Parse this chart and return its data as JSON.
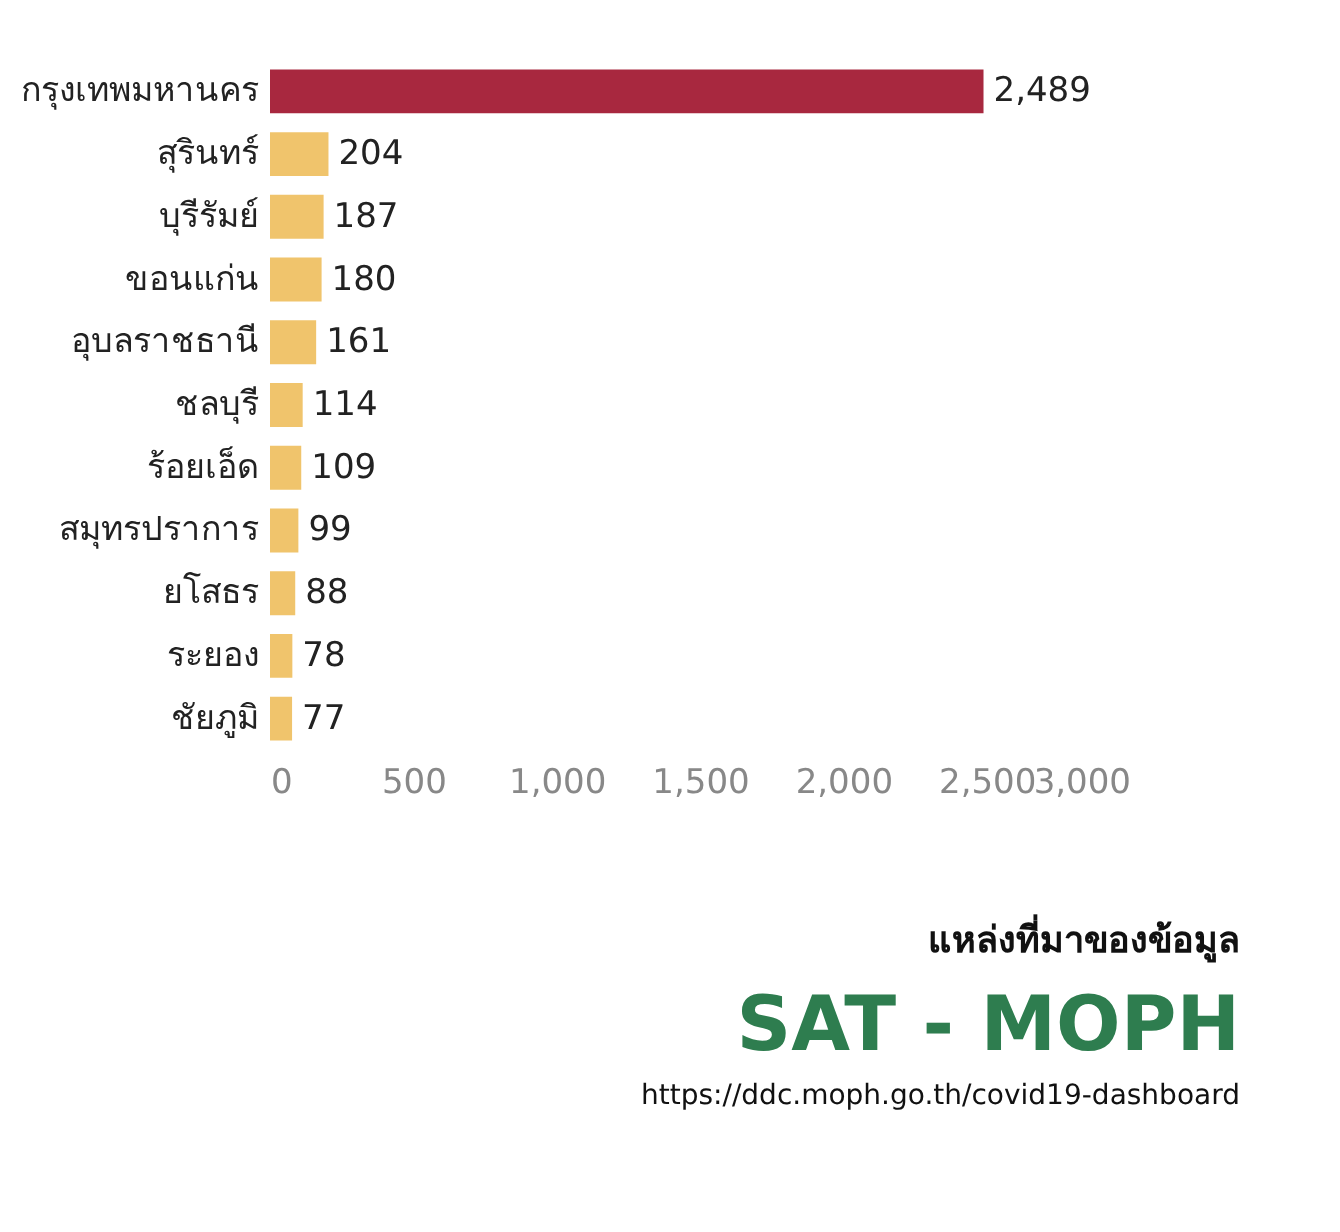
{
  "chart_data": {
    "type": "bar",
    "orientation": "horizontal",
    "categories": [
      "กรุงเทพมหานคร",
      "สุรินทร์",
      "บุรีรัมย์",
      "ขอนแก่น",
      "อุบลราชธานี",
      "ชลบุรี",
      "ร้อยเอ็ด",
      "สมุทรปราการ",
      "ยโสธร",
      "ระยอง",
      "ชัยภูมิ"
    ],
    "values": [
      2489,
      204,
      187,
      180,
      161,
      114,
      109,
      99,
      88,
      78,
      77
    ],
    "colors": [
      "#a8283f",
      "#f0c46c",
      "#f0c46c",
      "#f0c46c",
      "#f0c46c",
      "#f0c46c",
      "#f0c46c",
      "#f0c46c",
      "#f0c46c",
      "#f0c46c",
      "#f0c46c"
    ],
    "value_labels": [
      "2,489",
      "204",
      "187",
      "180",
      "161",
      "114",
      "109",
      "99",
      "88",
      "78",
      "77"
    ],
    "xlim": [
      0,
      3000
    ],
    "xticks": [
      0,
      500,
      {
        "value": 1000,
        "label": "1,000"
      },
      {
        "value": 1500,
        "label": "1,500"
      },
      {
        "value": 2000,
        "label": "2,000"
      },
      {
        "value": 2500,
        "label": "2,500"
      },
      {
        "value": 3000,
        "label": "3,000"
      }
    ],
    "grid": false,
    "annotations": [
      "แหล่งที่มาของข้อมูล",
      "SAT - MOPH",
      "https://ddc.moph.go.th/covid19-dashboard"
    ]
  }
}
